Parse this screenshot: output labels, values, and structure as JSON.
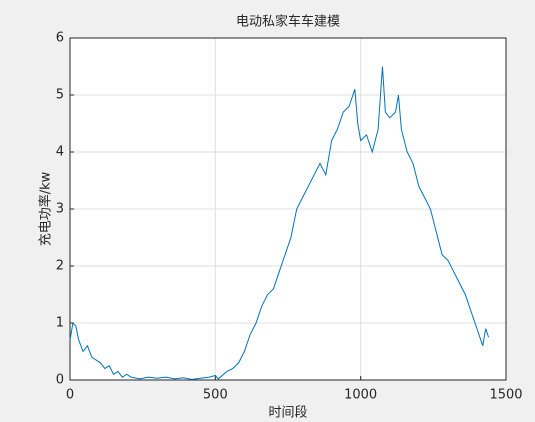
{
  "chart_data": {
    "type": "line",
    "title": "电动私家车车建模",
    "x_label": "时间段",
    "y_label": "充电功率/kw",
    "x": [
      0,
      10,
      20,
      30,
      45,
      60,
      75,
      90,
      105,
      120,
      135,
      150,
      165,
      180,
      195,
      210,
      240,
      270,
      300,
      330,
      360,
      390,
      420,
      450,
      480,
      500,
      510,
      540,
      560,
      580,
      600,
      620,
      640,
      660,
      680,
      700,
      720,
      740,
      760,
      780,
      800,
      820,
      840,
      860,
      880,
      900,
      920,
      940,
      960,
      980,
      990,
      1000,
      1020,
      1040,
      1060,
      1075,
      1085,
      1100,
      1120,
      1130,
      1140,
      1160,
      1180,
      1200,
      1220,
      1240,
      1260,
      1280,
      1300,
      1320,
      1340,
      1360,
      1380,
      1400,
      1420,
      1430,
      1440
    ],
    "series": [
      {
        "name": "充电功率",
        "color": "#0072bd",
        "values": [
          0.7,
          1.0,
          0.95,
          0.7,
          0.5,
          0.6,
          0.4,
          0.35,
          0.3,
          0.2,
          0.25,
          0.1,
          0.15,
          0.05,
          0.1,
          0.05,
          0.02,
          0.05,
          0.03,
          0.05,
          0.02,
          0.04,
          0.01,
          0.03,
          0.05,
          0.08,
          0.02,
          0.15,
          0.2,
          0.3,
          0.5,
          0.8,
          1.0,
          1.3,
          1.5,
          1.6,
          1.9,
          2.2,
          2.5,
          3.0,
          3.2,
          3.4,
          3.6,
          3.8,
          3.6,
          4.2,
          4.4,
          4.7,
          4.8,
          5.1,
          4.5,
          4.2,
          4.3,
          4.0,
          4.4,
          5.5,
          4.7,
          4.6,
          4.7,
          5.0,
          4.4,
          4.0,
          3.8,
          3.4,
          3.2,
          3.0,
          2.6,
          2.2,
          2.1,
          1.9,
          1.7,
          1.5,
          1.2,
          0.9,
          0.6,
          0.9,
          0.75
        ]
      }
    ],
    "xlim": [
      0,
      1500
    ],
    "xticks": [
      0,
      500,
      1000,
      1500
    ],
    "ylim": [
      0,
      6
    ],
    "yticks": [
      0,
      1,
      2,
      3,
      4,
      5,
      6
    ],
    "grid": true
  }
}
